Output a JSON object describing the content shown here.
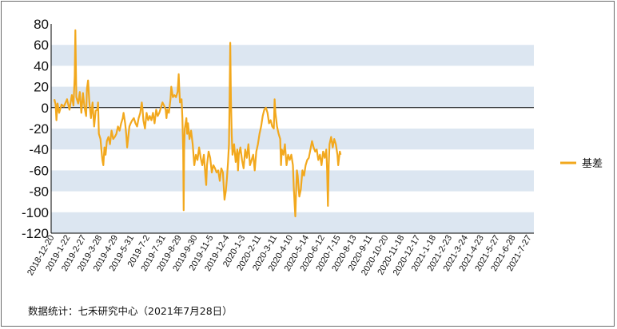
{
  "chart_data": {
    "type": "line",
    "title": "",
    "xlabel": "",
    "ylabel": "",
    "ylim": [
      -120,
      80
    ],
    "yticks": [
      80,
      60,
      40,
      20,
      0,
      -20,
      -40,
      -60,
      -80,
      -100,
      -120
    ],
    "y_tick_labels": [
      "80",
      "60",
      "40",
      "20",
      "0",
      "-20",
      "-40",
      "-60",
      "-80",
      "-100",
      "-120"
    ],
    "x_tick_labels": [
      "2018-12-20",
      "2019-1-22",
      "2019-2-27",
      "2019-3-28",
      "2019-4-29",
      "2019-5-31",
      "2019-7-2",
      "2019-7-31",
      "2019-8-29",
      "2019-9-30",
      "2019-11-5",
      "2019-12-4",
      "2020-1-3",
      "2020-2-11",
      "2020-3-11",
      "2020-4-10",
      "2020-5-14",
      "2020-6-12",
      "2020-7-15",
      "2020-8-13",
      "2020-9-11",
      "2020-10-20",
      "2020-11-18",
      "2020-12-17",
      "2021-1-18",
      "2021-2-23",
      "2021-3-24",
      "2021-4-23",
      "2021-5-27",
      "2021-6-28",
      "2021-7-27"
    ],
    "band_color": "#dce6f1",
    "grid": "alternating horizontal bands",
    "legend_position": "right",
    "series": [
      {
        "name": "基差",
        "color": "#f2a81d",
        "keypoints": [
          [
            0,
            8
          ],
          [
            0.08,
            3
          ],
          [
            0.13,
            -12
          ],
          [
            0.2,
            4
          ],
          [
            0.3,
            -5
          ],
          [
            0.45,
            3
          ],
          [
            0.6,
            1
          ],
          [
            0.8,
            8
          ],
          [
            0.95,
            -2
          ],
          [
            1.1,
            12
          ],
          [
            1.2,
            2
          ],
          [
            1.28,
            30
          ],
          [
            1.32,
            74
          ],
          [
            1.38,
            10
          ],
          [
            1.5,
            4
          ],
          [
            1.6,
            15
          ],
          [
            1.7,
            -5
          ],
          [
            1.8,
            14
          ],
          [
            1.9,
            0
          ],
          [
            2.0,
            -8
          ],
          [
            2.05,
            18
          ],
          [
            2.12,
            26
          ],
          [
            2.2,
            5
          ],
          [
            2.3,
            -10
          ],
          [
            2.4,
            5
          ],
          [
            2.5,
            -18
          ],
          [
            2.6,
            -3
          ],
          [
            2.7,
            -2
          ],
          [
            2.75,
            5
          ],
          [
            2.8,
            -25
          ],
          [
            2.9,
            -30
          ],
          [
            2.97,
            -42
          ],
          [
            3.02,
            -50
          ],
          [
            3.08,
            -55
          ],
          [
            3.15,
            -38
          ],
          [
            3.22,
            -45
          ],
          [
            3.3,
            -32
          ],
          [
            3.4,
            -28
          ],
          [
            3.5,
            -35
          ],
          [
            3.6,
            -22
          ],
          [
            3.7,
            -30
          ],
          [
            3.8,
            -28
          ],
          [
            3.9,
            -25
          ],
          [
            4.0,
            -18
          ],
          [
            4.1,
            -22
          ],
          [
            4.2,
            -15
          ],
          [
            4.3,
            -10
          ],
          [
            4.35,
            -5
          ],
          [
            4.45,
            -15
          ],
          [
            4.52,
            -25
          ],
          [
            4.58,
            -38
          ],
          [
            4.65,
            -28
          ],
          [
            4.72,
            -18
          ],
          [
            4.8,
            -15
          ],
          [
            4.9,
            -12
          ],
          [
            5.0,
            -10
          ],
          [
            5.1,
            -15
          ],
          [
            5.2,
            -18
          ],
          [
            5.3,
            -10
          ],
          [
            5.4,
            -5
          ],
          [
            5.5,
            5
          ],
          [
            5.55,
            -2
          ],
          [
            5.6,
            -12
          ],
          [
            5.7,
            -20
          ],
          [
            5.8,
            -5
          ],
          [
            5.9,
            -12
          ],
          [
            6.0,
            -8
          ],
          [
            6.1,
            -12
          ],
          [
            6.2,
            -5
          ],
          [
            6.3,
            -15
          ],
          [
            6.4,
            -2
          ],
          [
            6.5,
            -8
          ],
          [
            6.6,
            -5
          ],
          [
            6.7,
            0
          ],
          [
            6.8,
            5
          ],
          [
            6.9,
            2
          ],
          [
            7.0,
            -2
          ],
          [
            7.05,
            -10
          ],
          [
            7.1,
            -2
          ],
          [
            7.2,
            -5
          ],
          [
            7.3,
            8
          ],
          [
            7.35,
            20
          ],
          [
            7.4,
            15
          ],
          [
            7.45,
            10
          ],
          [
            7.55,
            12
          ],
          [
            7.65,
            10
          ],
          [
            7.75,
            15
          ],
          [
            7.82,
            32
          ],
          [
            7.85,
            20
          ],
          [
            7.9,
            5
          ],
          [
            8.0,
            8
          ],
          [
            8.05,
            -10
          ],
          [
            8.1,
            -40
          ],
          [
            8.13,
            -98
          ],
          [
            8.16,
            -40
          ],
          [
            8.2,
            -20
          ],
          [
            8.3,
            -10
          ],
          [
            8.35,
            -25
          ],
          [
            8.4,
            -15
          ],
          [
            8.5,
            -30
          ],
          [
            8.6,
            -22
          ],
          [
            8.7,
            -35
          ],
          [
            8.8,
            -55
          ],
          [
            8.9,
            -45
          ],
          [
            9.0,
            -50
          ],
          [
            9.1,
            -38
          ],
          [
            9.2,
            -48
          ],
          [
            9.3,
            -55
          ],
          [
            9.4,
            -45
          ],
          [
            9.5,
            -65
          ],
          [
            9.55,
            -74
          ],
          [
            9.6,
            -55
          ],
          [
            9.7,
            -42
          ],
          [
            9.8,
            -48
          ],
          [
            9.9,
            -62
          ],
          [
            10.0,
            -55
          ],
          [
            10.1,
            -58
          ],
          [
            10.2,
            -62
          ],
          [
            10.3,
            -60
          ],
          [
            10.4,
            -70
          ],
          [
            10.5,
            -58
          ],
          [
            10.6,
            -62
          ],
          [
            10.7,
            -88
          ],
          [
            10.78,
            -80
          ],
          [
            10.85,
            -68
          ],
          [
            10.92,
            -52
          ],
          [
            10.98,
            -35
          ],
          [
            11.02,
            10
          ],
          [
            11.06,
            62
          ],
          [
            11.1,
            10
          ],
          [
            11.15,
            -25
          ],
          [
            11.2,
            -45
          ],
          [
            11.3,
            -35
          ],
          [
            11.4,
            -52
          ],
          [
            11.5,
            -40
          ],
          [
            11.55,
            -60
          ],
          [
            11.6,
            -45
          ],
          [
            11.7,
            -38
          ],
          [
            11.8,
            -50
          ],
          [
            11.9,
            -58
          ],
          [
            12.0,
            -40
          ],
          [
            12.1,
            -48
          ],
          [
            12.2,
            -35
          ],
          [
            12.3,
            -55
          ],
          [
            12.4,
            -50
          ],
          [
            12.5,
            -45
          ],
          [
            12.6,
            -60
          ],
          [
            12.7,
            -42
          ],
          [
            12.8,
            -35
          ],
          [
            12.9,
            -25
          ],
          [
            13.0,
            -18
          ],
          [
            13.1,
            -8
          ],
          [
            13.2,
            -2
          ],
          [
            13.3,
            0
          ],
          [
            13.4,
            -5
          ],
          [
            13.45,
            -10
          ],
          [
            13.5,
            -15
          ],
          [
            13.6,
            -12
          ],
          [
            13.7,
            -18
          ],
          [
            13.8,
            -20
          ],
          [
            13.85,
            8
          ],
          [
            13.9,
            -5
          ],
          [
            14.0,
            -18
          ],
          [
            14.1,
            -25
          ],
          [
            14.2,
            -30
          ],
          [
            14.25,
            -55
          ],
          [
            14.3,
            -40
          ],
          [
            14.4,
            -45
          ],
          [
            14.5,
            -35
          ],
          [
            14.6,
            -55
          ],
          [
            14.7,
            -45
          ],
          [
            14.8,
            -50
          ],
          [
            14.9,
            -45
          ],
          [
            15.0,
            -55
          ],
          [
            15.05,
            -75
          ],
          [
            15.1,
            -90
          ],
          [
            15.15,
            -104
          ],
          [
            15.2,
            -80
          ],
          [
            15.25,
            -60
          ],
          [
            15.3,
            -65
          ],
          [
            15.4,
            -85
          ],
          [
            15.5,
            -78
          ],
          [
            15.6,
            -60
          ],
          [
            15.7,
            -65
          ],
          [
            15.8,
            -55
          ],
          [
            15.9,
            -50
          ],
          [
            16.0,
            -48
          ],
          [
            16.1,
            -40
          ],
          [
            16.2,
            -32
          ],
          [
            16.3,
            -38
          ],
          [
            16.4,
            -42
          ],
          [
            16.5,
            -40
          ],
          [
            16.6,
            -50
          ],
          [
            16.7,
            -45
          ],
          [
            16.8,
            -55
          ],
          [
            16.9,
            -42
          ],
          [
            17.0,
            -48
          ],
          [
            17.1,
            -40
          ],
          [
            17.15,
            -60
          ],
          [
            17.2,
            -94
          ],
          [
            17.25,
            -55
          ],
          [
            17.3,
            -35
          ],
          [
            17.4,
            -28
          ],
          [
            17.5,
            -38
          ],
          [
            17.6,
            -30
          ],
          [
            17.7,
            -35
          ],
          [
            17.8,
            -45
          ],
          [
            17.85,
            -55
          ],
          [
            17.9,
            -48
          ],
          [
            17.95,
            -42
          ],
          [
            18.0,
            -45
          ]
        ]
      }
    ]
  },
  "source_text": "数据统计：七禾研究中心（2021年7月28日）"
}
